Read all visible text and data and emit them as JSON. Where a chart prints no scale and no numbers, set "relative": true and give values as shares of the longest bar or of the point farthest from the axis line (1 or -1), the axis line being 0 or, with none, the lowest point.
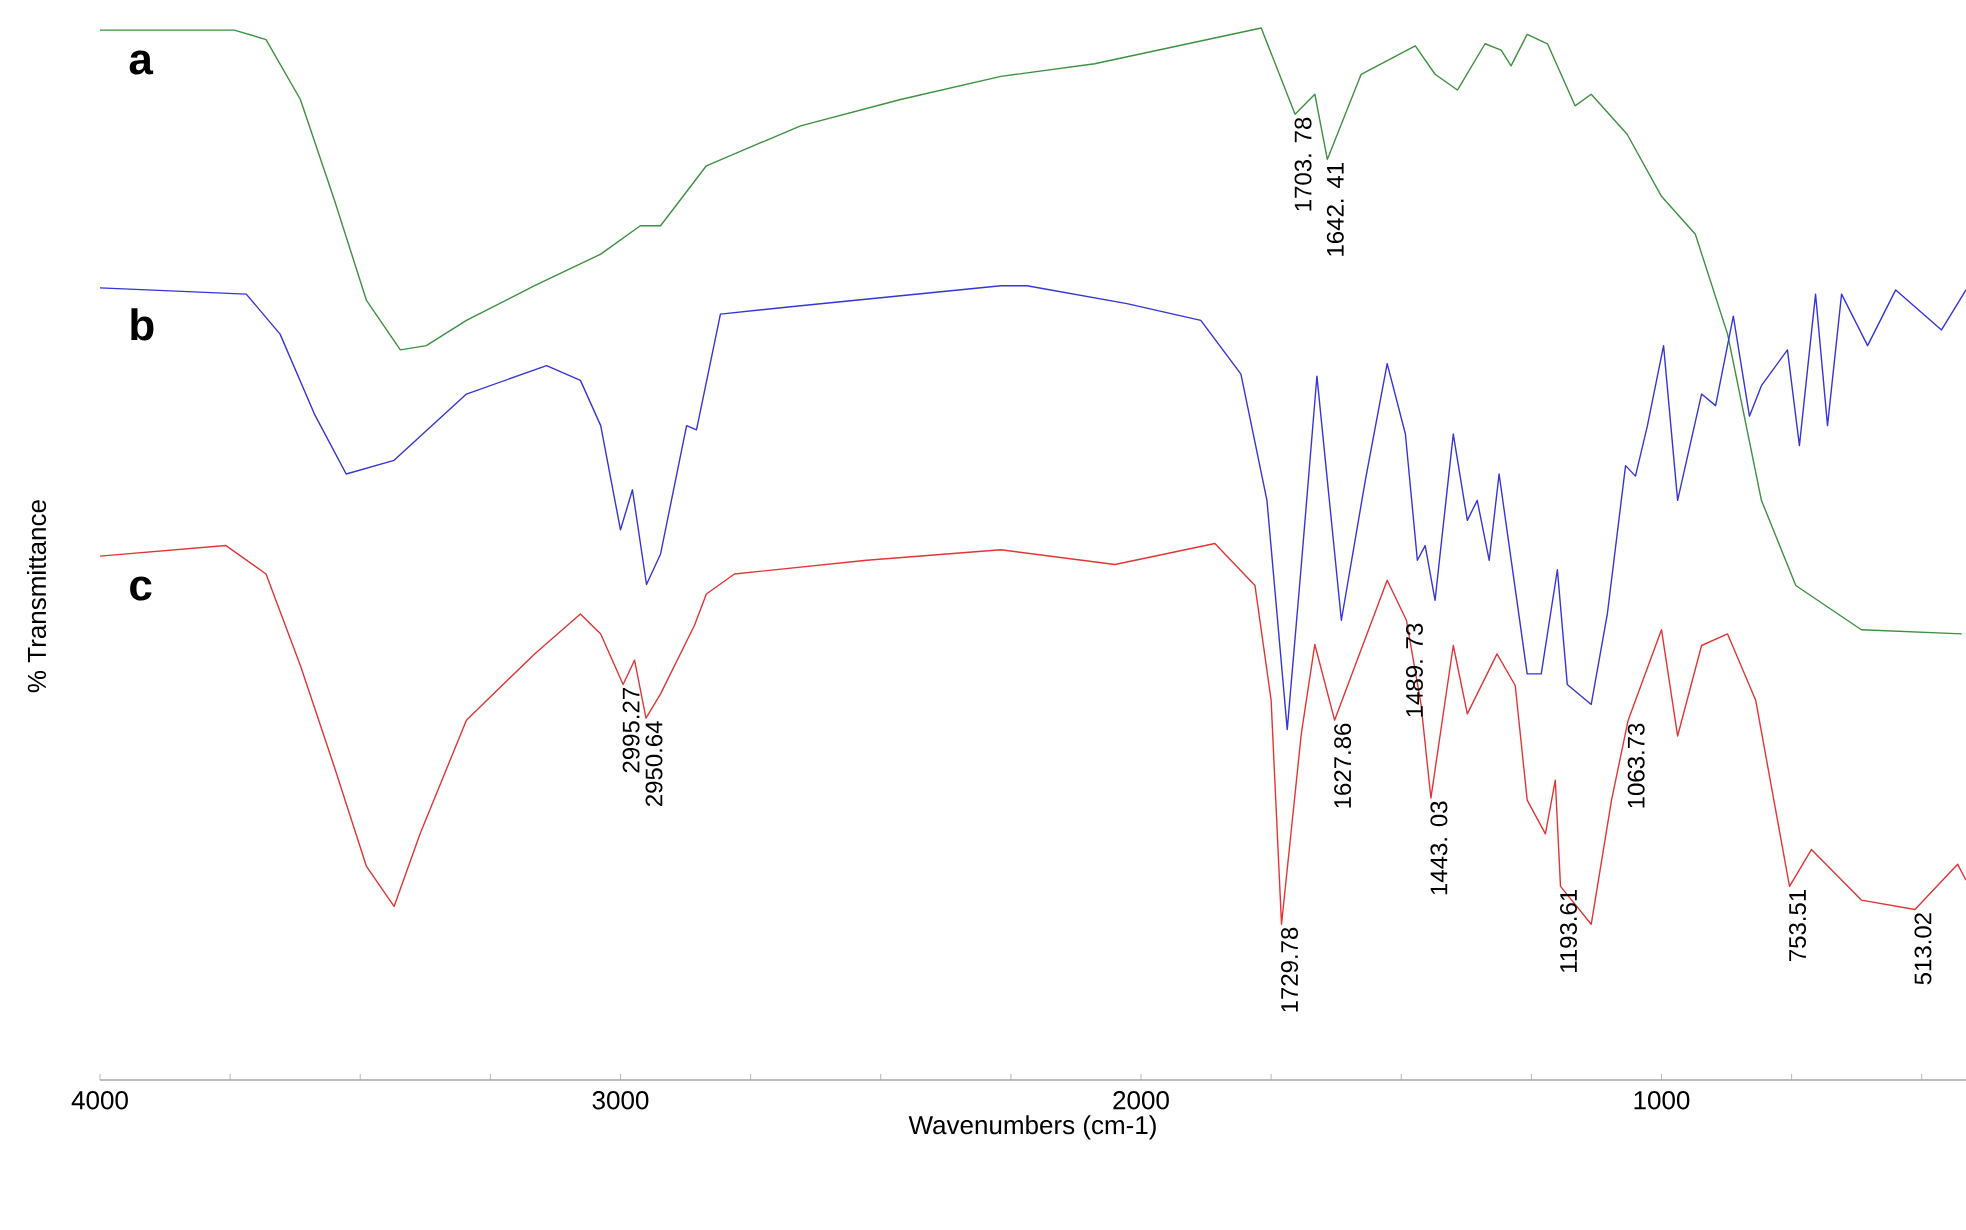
{
  "chart_data": {
    "type": "line",
    "relative": true,
    "xlabel": "Wavenumbers (cm-1)",
    "ylabel": "% Transmittance",
    "xlim": [
      4000,
      415
    ],
    "xticks": [
      4000,
      {
        "value": 3750,
        "label": null
      },
      {
        "value": 3500,
        "label": null
      },
      {
        "value": 3250,
        "label": null
      },
      3000,
      {
        "value": 2750,
        "label": null
      },
      {
        "value": 2500,
        "label": null
      },
      {
        "value": 2250,
        "label": null
      },
      2000,
      {
        "value": 1750,
        "label": null
      },
      {
        "value": 1500,
        "label": null
      },
      {
        "value": 1250,
        "label": null
      },
      1000,
      {
        "value": 750,
        "label": null
      },
      {
        "value": 500,
        "label": null
      }
    ],
    "marker": "none",
    "line_style": "solid",
    "grid": false,
    "series": [
      {
        "name": "a",
        "color": "#3d9140",
        "x": [
          4000,
          3742,
          3681,
          3615,
          3550,
          3488,
          3423,
          3373,
          3296,
          3165,
          3038,
          2962,
          2923,
          2835,
          2654,
          2462,
          2269,
          2089,
          1769,
          1704,
          1666,
          1642,
          1577,
          1473,
          1435,
          1392,
          1339,
          1308,
          1289,
          1258,
          1219,
          1166,
          1135,
          1066,
          1000,
          935,
          873,
          808,
          742,
          616,
          423
        ],
        "values": [
          0.998,
          0.998,
          0.989,
          0.932,
          0.837,
          0.741,
          0.694,
          0.698,
          0.722,
          0.755,
          0.785,
          0.812,
          0.812,
          0.869,
          0.907,
          0.932,
          0.954,
          0.966,
          1.0,
          0.918,
          0.937,
          0.875,
          0.956,
          0.983,
          0.956,
          0.941,
          0.985,
          0.979,
          0.964,
          0.994,
          0.985,
          0.926,
          0.937,
          0.899,
          0.84,
          0.804,
          0.709,
          0.551,
          0.47,
          0.428,
          0.424
        ]
      },
      {
        "name": "b",
        "color": "#3535d8",
        "x": [
          4000,
          3719,
          3654,
          3588,
          3527,
          3435,
          3296,
          3142,
          3077,
          3038,
          3000,
          2977,
          2950,
          2923,
          2873,
          2854,
          2808,
          2654,
          2269,
          2219,
          2027,
          1885,
          1808,
          1758,
          1719,
          1692,
          1662,
          1615,
          1569,
          1527,
          1492,
          1469,
          1454,
          1435,
          1400,
          1373,
          1354,
          1331,
          1312,
          1258,
          1231,
          1200,
          1181,
          1135,
          1104,
          1069,
          1050,
          1027,
          996,
          969,
          923,
          896,
          862,
          831,
          808,
          758,
          735,
          704,
          681,
          654,
          604,
          550,
          462,
          415
        ],
        "values": [
          0.753,
          0.747,
          0.709,
          0.633,
          0.576,
          0.589,
          0.652,
          0.679,
          0.665,
          0.622,
          0.523,
          0.561,
          0.471,
          0.5,
          0.622,
          0.618,
          0.728,
          0.736,
          0.755,
          0.755,
          0.738,
          0.722,
          0.671,
          0.551,
          0.333,
          0.489,
          0.669,
          0.437,
          0.57,
          0.681,
          0.614,
          0.494,
          0.508,
          0.456,
          0.614,
          0.532,
          0.551,
          0.494,
          0.576,
          0.386,
          0.386,
          0.485,
          0.376,
          0.357,
          0.443,
          0.584,
          0.574,
          0.622,
          0.698,
          0.551,
          0.652,
          0.641,
          0.726,
          0.631,
          0.66,
          0.694,
          0.603,
          0.747,
          0.622,
          0.747,
          0.698,
          0.751,
          0.713,
          0.751
        ]
      },
      {
        "name": "c",
        "color": "#e23535",
        "x": [
          4000,
          3758,
          3681,
          3615,
          3550,
          3488,
          3435,
          3385,
          3296,
          3165,
          3077,
          3038,
          2995,
          2973,
          2951,
          2923,
          2858,
          2835,
          2781,
          2527,
          2269,
          2050,
          1858,
          1781,
          1750,
          1730,
          1692,
          1666,
          1628,
          1527,
          1490,
          1462,
          1443,
          1400,
          1373,
          1316,
          1281,
          1258,
          1223,
          1204,
          1194,
          1135,
          1096,
          1064,
          1000,
          969,
          923,
          873,
          819,
          754,
          712,
          616,
          513,
          431,
          415
        ],
        "values": [
          0.498,
          0.508,
          0.481,
          0.394,
          0.298,
          0.203,
          0.165,
          0.234,
          0.342,
          0.405,
          0.443,
          0.424,
          0.376,
          0.399,
          0.344,
          0.367,
          0.432,
          0.462,
          0.481,
          0.494,
          0.504,
          0.49,
          0.51,
          0.47,
          0.361,
          0.148,
          0.329,
          0.414,
          0.342,
          0.475,
          0.437,
          0.357,
          0.268,
          0.413,
          0.348,
          0.405,
          0.375,
          0.266,
          0.234,
          0.285,
          0.184,
          0.148,
          0.266,
          0.342,
          0.428,
          0.327,
          0.413,
          0.424,
          0.361,
          0.184,
          0.219,
          0.171,
          0.162,
          0.205,
          0.19
        ]
      }
    ],
    "annotations": [
      {
        "text": "1703. 78",
        "x": 1704,
        "y": 0.918
      },
      {
        "text": "1642. 41",
        "x": 1642,
        "y": 0.875
      },
      {
        "text": "2995.27",
        "x": 2995,
        "y": 0.376
      },
      {
        "text": "2950.64",
        "x": 2951,
        "y": 0.344
      },
      {
        "text": "1729.78",
        "x": 1730,
        "y": 0.148
      },
      {
        "text": "1627.86",
        "x": 1628,
        "y": 0.342
      },
      {
        "text": "1489. 73",
        "x": 1490,
        "y": 0.437
      },
      {
        "text": "1443. 03",
        "x": 1443,
        "y": 0.268
      },
      {
        "text": "1193.61",
        "x": 1194,
        "y": 0.184
      },
      {
        "text": "1063.73",
        "x": 1064,
        "y": 0.342
      },
      {
        "text": "753.51",
        "x": 754,
        "y": 0.184
      },
      {
        "text": "513.02",
        "x": 513,
        "y": 0.162
      }
    ]
  }
}
